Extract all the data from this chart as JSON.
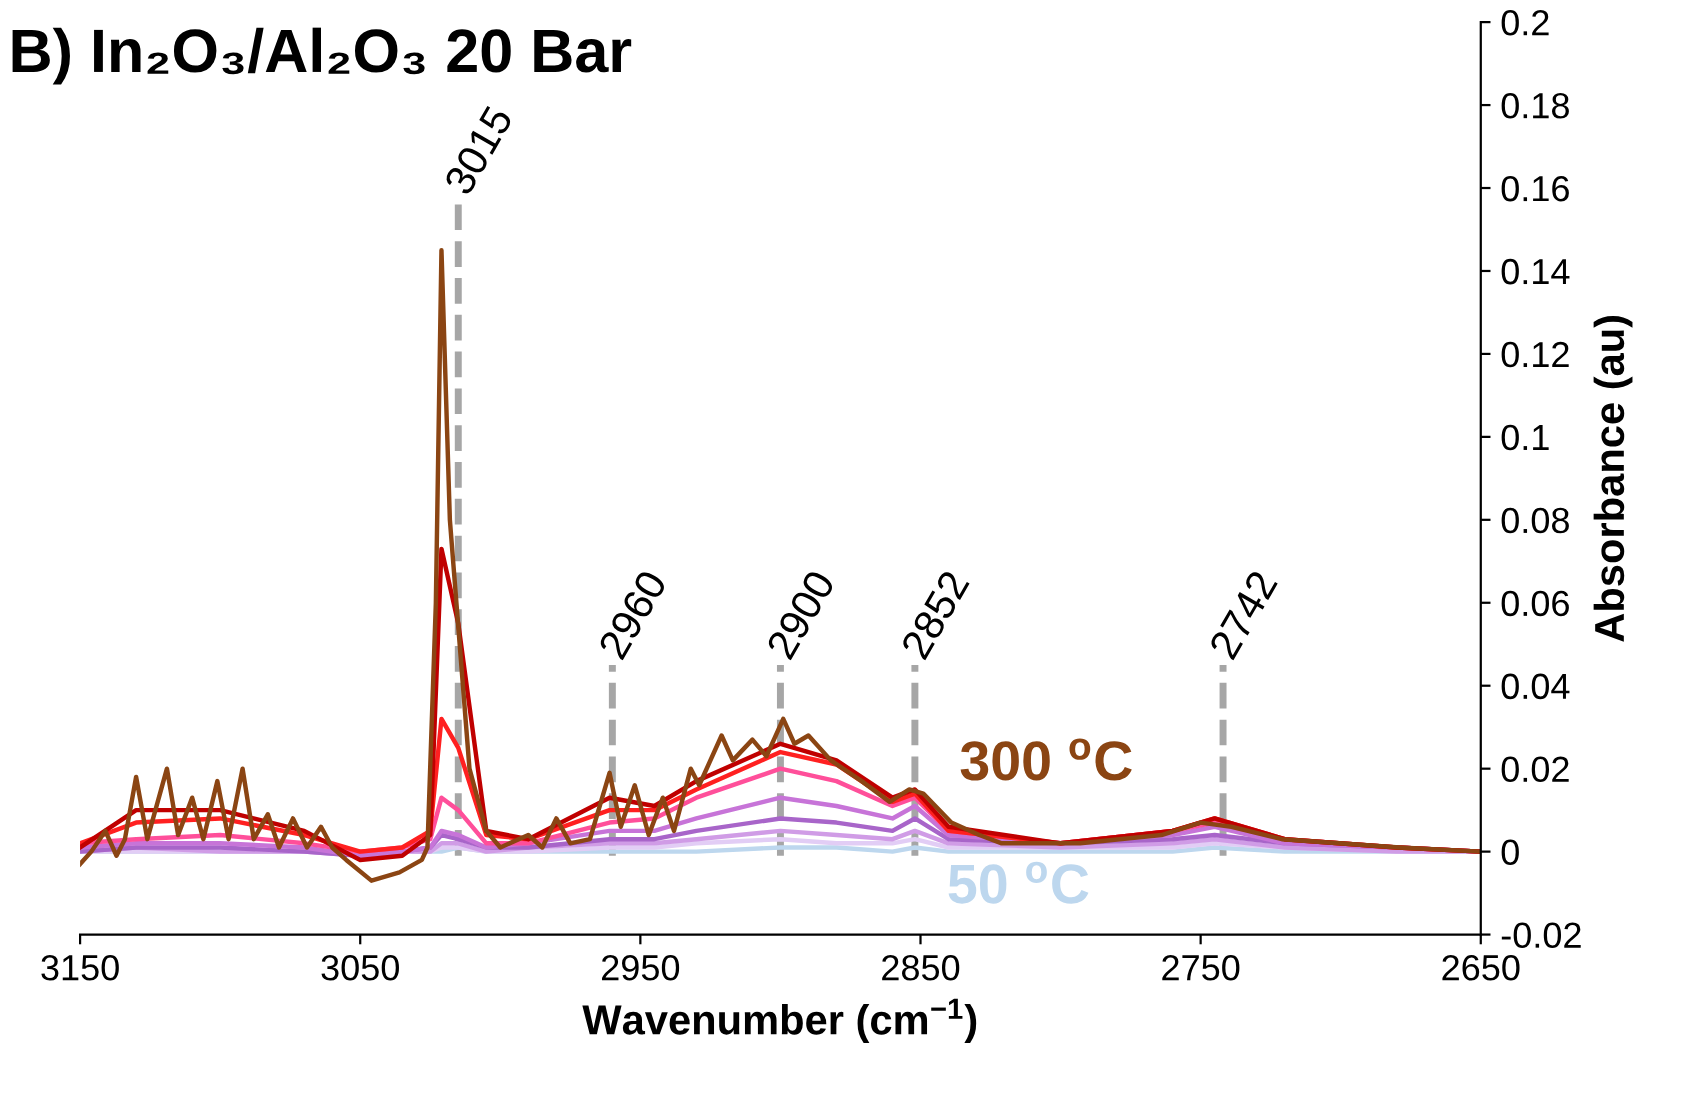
{
  "chart_data": {
    "type": "line",
    "title": "B) In₂O₃/Al₂O₃ 20 Bar",
    "xlabel": "Wavenumber (cm$^{−1}$)",
    "ylabel": "Absorbance (au)",
    "x": [
      3150,
      3130,
      3100,
      3070,
      3050,
      3035,
      3025,
      3021,
      3015,
      3005,
      2990,
      2961,
      2945,
      2930,
      2900,
      2880,
      2860,
      2852,
      2840,
      2800,
      2760,
      2745,
      2720,
      2680,
      2650
    ],
    "series": [
      {
        "color": "#bdd7ee",
        "values": [
          0,
          0,
          0,
          0,
          0,
          0,
          0,
          0,
          0.001,
          0,
          0,
          0,
          0,
          0,
          0.001,
          0.001,
          0,
          0.001,
          0,
          0,
          0,
          0.001,
          0,
          0,
          0
        ]
      },
      {
        "color": "#e2cdf5",
        "values": [
          0,
          0,
          0,
          0,
          0,
          0,
          0,
          0.001,
          0.001,
          0,
          0,
          0.001,
          0.001,
          0.002,
          0.003,
          0.002,
          0.002,
          0.003,
          0.001,
          0.001,
          0.001,
          0.002,
          0.001,
          0,
          0
        ]
      },
      {
        "color": "#d09ce6",
        "values": [
          0,
          0.001,
          0,
          0,
          -0.001,
          0,
          0,
          0.002,
          0.002,
          0,
          0.001,
          0.002,
          0.002,
          0.003,
          0.005,
          0.004,
          0.003,
          0.005,
          0.002,
          0.001,
          0.002,
          0.003,
          0.001,
          0,
          0
        ]
      },
      {
        "color": "#a865c9",
        "values": [
          0,
          0.001,
          0.001,
          0,
          -0.001,
          0,
          0.001,
          0.004,
          0.003,
          0.001,
          0.001,
          0.003,
          0.003,
          0.005,
          0.008,
          0.007,
          0.005,
          0.008,
          0.003,
          0.002,
          0.003,
          0.004,
          0.002,
          0.001,
          0
        ]
      },
      {
        "color": "#c774d8",
        "values": [
          0.001,
          0.002,
          0.002,
          0.001,
          -0.001,
          0,
          0.001,
          0.005,
          0.004,
          0.001,
          0.002,
          0.005,
          0.005,
          0.008,
          0.013,
          0.011,
          0.008,
          0.011,
          0.004,
          0.002,
          0.004,
          0.006,
          0.002,
          0.001,
          0
        ]
      },
      {
        "color": "#ff4f9a",
        "values": [
          0.002,
          0.003,
          0.004,
          0.002,
          0,
          0.001,
          0.003,
          0.013,
          0.01,
          0.002,
          0.002,
          0.007,
          0.008,
          0.013,
          0.02,
          0.017,
          0.011,
          0.013,
          0.005,
          0.002,
          0.005,
          0.007,
          0.003,
          0.001,
          0
        ]
      },
      {
        "color": "#ff2020",
        "values": [
          0.002,
          0.007,
          0.008,
          0.004,
          0,
          0.001,
          0.005,
          0.032,
          0.025,
          0.004,
          0.003,
          0.01,
          0.01,
          0.015,
          0.024,
          0.021,
          0.012,
          0.014,
          0.005,
          0.002,
          0.005,
          0.008,
          0.003,
          0.001,
          0
        ]
      },
      {
        "color": "#c00000",
        "values": [
          0.001,
          0.01,
          0.01,
          0.005,
          -0.002,
          -0.001,
          0.004,
          0.073,
          0.055,
          0.005,
          0.003,
          0.013,
          0.011,
          0.017,
          0.026,
          0.022,
          0.013,
          0.015,
          0.006,
          0.002,
          0.005,
          0.008,
          0.003,
          0.001,
          0
        ]
      },
      {
        "color": "#8b4513",
        "x": [
          3150,
          3146,
          3141,
          3137,
          3134,
          3130,
          3126,
          3119,
          3115,
          3110,
          3106,
          3101,
          3097,
          3092,
          3088,
          3083,
          3079,
          3074,
          3069,
          3064,
          3060,
          3055,
          3046,
          3036,
          3028,
          3026,
          3023,
          3021,
          3018,
          3011,
          3005,
          3000,
          2990,
          2985,
          2980,
          2975,
          2968,
          2961,
          2957,
          2952,
          2947,
          2942,
          2938,
          2932,
          2929,
          2921,
          2917,
          2910,
          2905,
          2899,
          2895,
          2890,
          2882,
          2871,
          2861,
          2854,
          2849,
          2839,
          2829,
          2821,
          2793,
          2764,
          2750,
          2739,
          2721,
          2679,
          2650
        ],
        "values": [
          -0.003,
          0,
          0.005,
          -0.001,
          0.003,
          0.018,
          0.003,
          0.02,
          0.004,
          0.013,
          0.003,
          0.017,
          0.003,
          0.02,
          0.003,
          0.009,
          0.001,
          0.008,
          0.001,
          0.006,
          0.001,
          -0.002,
          -0.007,
          -0.005,
          -0.002,
          0.001,
          0.06,
          0.145,
          0.08,
          0.02,
          0.005,
          0.001,
          0.004,
          0.001,
          0.008,
          0.002,
          0.003,
          0.019,
          0.006,
          0.016,
          0.004,
          0.013,
          0.005,
          0.02,
          0.016,
          0.028,
          0.022,
          0.027,
          0.023,
          0.032,
          0.026,
          0.028,
          0.022,
          0.017,
          0.012,
          0.015,
          0.014,
          0.007,
          0.004,
          0.002,
          0.002,
          0.004,
          0.007,
          0.006,
          0.003,
          0.001,
          0
        ]
      }
    ],
    "xlim": [
      3150,
      2650
    ],
    "xticks": [
      3150,
      3050,
      2950,
      2850,
      2750,
      2650
    ],
    "ylim": [
      -0.02,
      0.2
    ],
    "yticks": [
      -0.02,
      0,
      0.02,
      0.04,
      0.06,
      0.08,
      0.1,
      0.12,
      0.14,
      0.16,
      0.18,
      0.2
    ],
    "ref_lines": [
      {
        "axis": "x",
        "value": 3015,
        "label": "3015",
        "color": "#a6a6a6",
        "line_style": "dashed"
      },
      {
        "axis": "x",
        "value": 2960,
        "label": "2960",
        "color": "#a6a6a6",
        "line_style": "dashed"
      },
      {
        "axis": "x",
        "value": 2900,
        "label": "2900",
        "color": "#a6a6a6",
        "line_style": "dashed"
      },
      {
        "axis": "x",
        "value": 2852,
        "label": "2852",
        "color": "#a6a6a6",
        "line_style": "dashed"
      },
      {
        "axis": "x",
        "value": 2742,
        "label": "2742",
        "color": "#a6a6a6",
        "line_style": "dashed"
      }
    ],
    "annotations": [
      "300 $^{o}$C",
      "50 $^{o}$C"
    ],
    "grid": false,
    "legend": false,
    "marker": "none",
    "line_style": "solid"
  }
}
